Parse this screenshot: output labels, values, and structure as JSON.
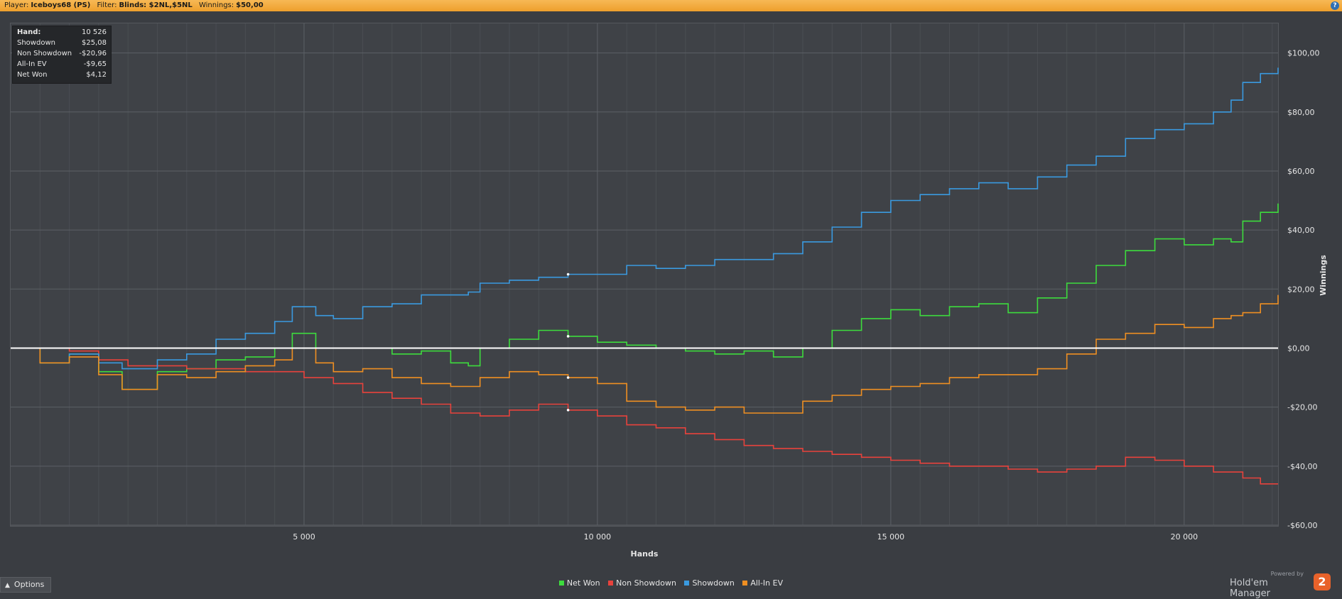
{
  "header": {
    "player_label": "Player:",
    "player_value": "Iceboys68 (PS)",
    "filter_label": "Filter:",
    "filter_value": "Blinds: $2NL,$5NL",
    "winnings_label": "Winnings:",
    "winnings_value": "$50,00",
    "help_glyph": "?"
  },
  "stats_box": [
    {
      "label": "Hand:",
      "value": "10 526"
    },
    {
      "label": "Showdown",
      "value": "$25,08"
    },
    {
      "label": "Non Showdown",
      "value": "-$20,96"
    },
    {
      "label": "All-In EV",
      "value": "-$9,65"
    },
    {
      "label": "Net Won",
      "value": "$4,12"
    }
  ],
  "footer": {
    "options_label": "Options",
    "options_icon": "chevron-up-icon",
    "powered_by": "Powered by",
    "brand_name": "Hold'em Manager",
    "brand_logo_text": "2"
  },
  "colors": {
    "net_won": "#3ddc3d",
    "non_showdown": "#e8423c",
    "showdown": "#3a9ae0",
    "all_in_ev": "#ef8f22",
    "zero_line": "#ffffff",
    "header_bar": "#f2a93b"
  },
  "chart_data": {
    "type": "line",
    "title": "",
    "xlabel": "Hands",
    "ylabel": "Winnings",
    "xlim": [
      0,
      21600
    ],
    "ylim": [
      -60,
      110
    ],
    "x_ticks": [
      5000,
      10000,
      15000,
      20000
    ],
    "x_tick_labels": [
      "5 000",
      "10 000",
      "15 000",
      "20 000"
    ],
    "y_ticks": [
      -60,
      -40,
      -20,
      0,
      20,
      40,
      60,
      80,
      100
    ],
    "y_tick_labels": [
      "-$60,00",
      "-$40,00",
      "-$20,00",
      "$0,00",
      "$20,00",
      "$40,00",
      "$60,00",
      "$80,00",
      "$100,00"
    ],
    "y_axis_position": "right",
    "grid": true,
    "legend_position": "bottom-center",
    "cursor_hand": 9500,
    "series": [
      {
        "name": "Net Won",
        "color": "#3ddc3d",
        "x": [
          0,
          500,
          1000,
          1500,
          1900,
          2500,
          3000,
          3500,
          4000,
          4500,
          4800,
          5200,
          6000,
          6500,
          7000,
          7500,
          7800,
          8000,
          8500,
          9000,
          9500,
          10000,
          10500,
          11000,
          11500,
          12000,
          12500,
          13000,
          13500,
          14000,
          14500,
          15000,
          15500,
          16000,
          16500,
          17000,
          17500,
          18000,
          18500,
          19000,
          19500,
          20000,
          20500,
          20800,
          21000,
          21300,
          21600
        ],
        "y": [
          0,
          -5,
          -2,
          -8,
          -14,
          -8,
          -7,
          -4,
          -3,
          0,
          5,
          0,
          0,
          -2,
          -1,
          -5,
          -6,
          0,
          3,
          6,
          4,
          2,
          1,
          0,
          -1,
          -2,
          -1,
          -3,
          0,
          6,
          10,
          13,
          11,
          14,
          15,
          12,
          17,
          22,
          28,
          33,
          37,
          35,
          37,
          36,
          43,
          46,
          49
        ]
      },
      {
        "name": "Non Showdown",
        "color": "#e8423c",
        "x": [
          0,
          500,
          1000,
          1500,
          2000,
          3000,
          4000,
          5000,
          5500,
          6000,
          6500,
          7000,
          7500,
          8000,
          8500,
          9000,
          9500,
          10000,
          10500,
          11000,
          11500,
          12000,
          12500,
          13000,
          13500,
          14000,
          14500,
          15000,
          15500,
          16000,
          16500,
          17000,
          17500,
          18000,
          18500,
          19000,
          19500,
          20000,
          20500,
          21000,
          21300,
          21600
        ],
        "y": [
          0,
          0,
          -1,
          -4,
          -6,
          -7,
          -8,
          -10,
          -12,
          -15,
          -17,
          -19,
          -22,
          -23,
          -21,
          -19,
          -21,
          -23,
          -26,
          -27,
          -29,
          -31,
          -33,
          -34,
          -35,
          -36,
          -37,
          -38,
          -39,
          -40,
          -40,
          -41,
          -42,
          -41,
          -40,
          -37,
          -38,
          -40,
          -42,
          -44,
          -46,
          -46
        ]
      },
      {
        "name": "Showdown",
        "color": "#3a9ae0",
        "x": [
          0,
          500,
          1000,
          1500,
          1900,
          2500,
          3000,
          3500,
          4000,
          4500,
          4800,
          5200,
          5500,
          6000,
          6500,
          7000,
          7500,
          7800,
          8000,
          8500,
          9000,
          9500,
          10000,
          10500,
          11000,
          11500,
          12000,
          12500,
          13000,
          13500,
          14000,
          14500,
          15000,
          15500,
          16000,
          16500,
          17000,
          17500,
          18000,
          18500,
          19000,
          19500,
          20000,
          20500,
          20800,
          21000,
          21300,
          21600
        ],
        "y": [
          0,
          -5,
          -2,
          -5,
          -7,
          -4,
          -2,
          3,
          5,
          9,
          14,
          11,
          10,
          14,
          15,
          18,
          18,
          19,
          22,
          23,
          24,
          25,
          25,
          28,
          27,
          28,
          30,
          30,
          32,
          36,
          41,
          46,
          50,
          52,
          54,
          56,
          54,
          58,
          62,
          65,
          71,
          74,
          76,
          80,
          84,
          90,
          93,
          95
        ]
      },
      {
        "name": "All-In EV",
        "color": "#ef8f22",
        "x": [
          0,
          500,
          1000,
          1500,
          1900,
          2500,
          3000,
          3500,
          4000,
          4500,
          4800,
          5200,
          5500,
          6000,
          6500,
          7000,
          7500,
          8000,
          8500,
          9000,
          9500,
          10000,
          10500,
          11000,
          11500,
          12000,
          12500,
          13000,
          13500,
          14000,
          14500,
          15000,
          15500,
          16000,
          16500,
          17000,
          17500,
          18000,
          18500,
          19000,
          19500,
          20000,
          20500,
          20800,
          21000,
          21300,
          21600
        ],
        "y": [
          0,
          -5,
          -3,
          -9,
          -14,
          -9,
          -10,
          -8,
          -6,
          -4,
          0,
          -5,
          -8,
          -7,
          -10,
          -12,
          -13,
          -10,
          -8,
          -9,
          -10,
          -12,
          -18,
          -20,
          -21,
          -20,
          -22,
          -22,
          -18,
          -16,
          -14,
          -13,
          -12,
          -10,
          -9,
          -9,
          -7,
          -2,
          3,
          5,
          8,
          7,
          10,
          11,
          12,
          15,
          18
        ]
      }
    ]
  }
}
